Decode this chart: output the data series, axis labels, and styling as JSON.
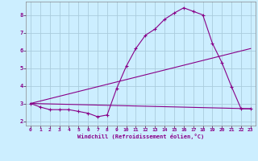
{
  "xlabel": "Windchill (Refroidissement éolien,°C)",
  "bg_color": "#cceeff",
  "grid_color": "#aaccdd",
  "line_color": "#880088",
  "xlim": [
    -0.5,
    23.5
  ],
  "ylim": [
    1.75,
    8.75
  ],
  "x_ticks": [
    0,
    1,
    2,
    3,
    4,
    5,
    6,
    7,
    8,
    9,
    10,
    11,
    12,
    13,
    14,
    15,
    16,
    17,
    18,
    19,
    20,
    21,
    22,
    23
  ],
  "y_ticks": [
    2,
    3,
    4,
    5,
    6,
    7,
    8
  ],
  "curve1_x": [
    0,
    1,
    2,
    3,
    4,
    5,
    6,
    7,
    8,
    9,
    10,
    11,
    12,
    13,
    14,
    15,
    16,
    17,
    18,
    19,
    20,
    21,
    22,
    23
  ],
  "curve1_y": [
    3.0,
    2.8,
    2.65,
    2.65,
    2.65,
    2.55,
    2.45,
    2.25,
    2.35,
    3.85,
    5.1,
    6.1,
    6.85,
    7.2,
    7.75,
    8.1,
    8.4,
    8.2,
    8.0,
    6.4,
    5.3,
    3.95,
    2.7,
    2.7
  ],
  "line1_x": [
    0,
    23
  ],
  "line1_y": [
    3.0,
    2.7
  ],
  "line2_x": [
    0,
    23
  ],
  "line2_y": [
    3.0,
    6.1
  ]
}
